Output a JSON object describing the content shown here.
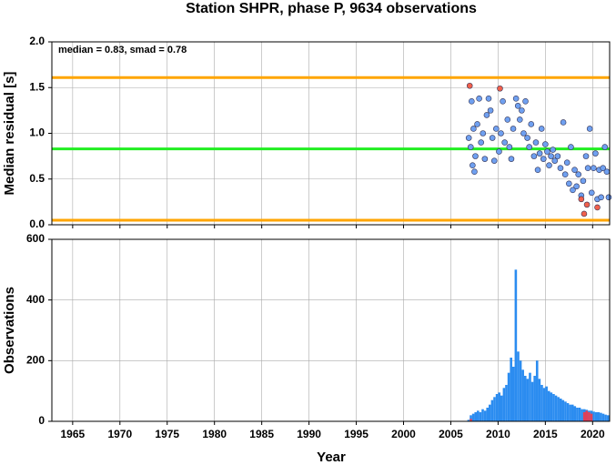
{
  "title": "Station SHPR, phase P, 9634 observations",
  "chart_data": [
    {
      "type": "scatter",
      "ylabel": "Median residual [s]",
      "annotation": "median = 0.83, smad = 0.78",
      "xlim": [
        1962.8,
        2021.8
      ],
      "xticks": [
        1965,
        1970,
        1975,
        1980,
        1985,
        1990,
        1995,
        2000,
        2005,
        2010,
        2015,
        2020
      ],
      "ylim": [
        0,
        2
      ],
      "yticks": [
        {
          "value": 0,
          "label": "0.0"
        },
        0.5,
        {
          "value": 1,
          "label": "1.0"
        },
        1.5,
        {
          "value": 2,
          "label": "2.0"
        }
      ],
      "grid": true,
      "hlines": [
        {
          "value": 1.61,
          "color": "#ffa500"
        },
        {
          "value": 0.83,
          "color": "#22ee22"
        },
        {
          "value": 0.05,
          "color": "#ffa500"
        }
      ],
      "series": [
        {
          "color": "#6fa0f0",
          "x": [
            2006.9,
            2007.1,
            2007.2,
            2007.3,
            2007.4,
            2007.5,
            2007.6,
            2007.8,
            2008.0,
            2008.2,
            2008.4,
            2008.6,
            2008.8,
            2009.0,
            2009.2,
            2009.4,
            2009.6,
            2009.8,
            2010.1,
            2010.3,
            2010.5,
            2010.7,
            2011.0,
            2011.2,
            2011.4,
            2011.6,
            2011.9,
            2012.1,
            2012.3,
            2012.5,
            2012.7,
            2012.9,
            2013.1,
            2013.3,
            2013.5,
            2013.8,
            2014.0,
            2014.2,
            2014.4,
            2014.6,
            2014.8,
            2015.0,
            2015.2,
            2015.4,
            2015.6,
            2015.8,
            2016.0,
            2016.3,
            2016.6,
            2016.9,
            2017.1,
            2017.3,
            2017.5,
            2017.7,
            2017.9,
            2018.1,
            2018.3,
            2018.5,
            2018.8,
            2019.0,
            2019.3,
            2019.5,
            2019.7,
            2019.9,
            2020.1,
            2020.3,
            2020.5,
            2020.7,
            2020.9,
            2021.1,
            2021.3,
            2021.5,
            2021.7
          ],
          "values": [
            0.95,
            0.85,
            1.35,
            0.65,
            1.05,
            0.58,
            0.75,
            1.1,
            1.38,
            0.9,
            1.0,
            0.72,
            1.2,
            1.38,
            1.25,
            0.95,
            0.7,
            1.05,
            0.8,
            1.0,
            1.35,
            0.9,
            1.15,
            0.85,
            0.72,
            1.05,
            1.38,
            1.3,
            1.15,
            1.25,
            1.0,
            1.35,
            0.95,
            0.85,
            1.1,
            0.75,
            0.9,
            0.6,
            0.78,
            1.05,
            0.72,
            0.88,
            0.8,
            0.65,
            0.75,
            0.82,
            0.7,
            0.75,
            0.62,
            1.12,
            0.55,
            0.68,
            0.45,
            0.85,
            0.38,
            0.6,
            0.42,
            0.55,
            0.32,
            0.48,
            0.75,
            0.62,
            1.05,
            0.35,
            0.62,
            0.78,
            0.28,
            0.6,
            0.3,
            0.62,
            0.85,
            0.58,
            0.3
          ]
        },
        {
          "color": "#f0604c",
          "x": [
            2007.0,
            2010.2,
            2018.8,
            2019.1,
            2019.4,
            2020.5
          ],
          "values": [
            1.52,
            1.49,
            0.28,
            0.12,
            0.22,
            0.19
          ]
        }
      ]
    },
    {
      "type": "histogram",
      "ylabel": "Observations",
      "xlabel": "Year",
      "xlim": [
        1962.8,
        2021.8
      ],
      "xticks": [
        1965,
        1970,
        1975,
        1980,
        1985,
        1990,
        1995,
        2000,
        2005,
        2010,
        2015,
        2020
      ],
      "ylim": [
        0,
        600
      ],
      "yticks": [
        0,
        200,
        400,
        600
      ],
      "grid": true,
      "bins": [
        2006.75,
        2007,
        2007.25,
        2007.5,
        2007.75,
        2008,
        2008.25,
        2008.5,
        2008.75,
        2009,
        2009.25,
        2009.5,
        2009.75,
        2010,
        2010.25,
        2010.5,
        2010.75,
        2011,
        2011.25,
        2011.5,
        2011.75,
        2012,
        2012.25,
        2012.5,
        2012.75,
        2013,
        2013.25,
        2013.5,
        2013.75,
        2014,
        2014.25,
        2014.5,
        2014.75,
        2015,
        2015.25,
        2015.5,
        2015.75,
        2016,
        2016.25,
        2016.5,
        2016.75,
        2017,
        2017.25,
        2017.5,
        2017.75,
        2018,
        2018.25,
        2018.5,
        2018.75,
        2019,
        2019.25,
        2019.5,
        2019.75,
        2020,
        2020.25,
        2020.5,
        2020.75,
        2021,
        2021.25,
        2021.5,
        2021.75
      ],
      "series": [
        {
          "color": "#2b8cf0",
          "values": [
            5,
            20,
            25,
            30,
            35,
            30,
            40,
            35,
            45,
            55,
            70,
            80,
            90,
            95,
            85,
            110,
            120,
            160,
            210,
            180,
            500,
            230,
            200,
            170,
            150,
            140,
            160,
            130,
            150,
            200,
            140,
            120,
            110,
            115,
            100,
            95,
            90,
            85,
            80,
            75,
            70,
            65,
            60,
            55,
            55,
            50,
            45,
            45,
            40,
            40,
            38,
            35,
            35,
            32,
            30,
            30,
            28,
            25,
            22,
            20
          ]
        },
        {
          "color": "#e0405a",
          "values": [
            0,
            8,
            0,
            0,
            0,
            0,
            0,
            0,
            0,
            0,
            0,
            0,
            0,
            0,
            0,
            0,
            0,
            0,
            0,
            0,
            0,
            0,
            0,
            0,
            0,
            0,
            0,
            0,
            0,
            0,
            0,
            0,
            0,
            0,
            0,
            0,
            0,
            0,
            0,
            0,
            0,
            0,
            0,
            0,
            0,
            0,
            0,
            0,
            0,
            30,
            35,
            30,
            25,
            0,
            0,
            0,
            0,
            0,
            0,
            0
          ]
        }
      ]
    }
  ]
}
